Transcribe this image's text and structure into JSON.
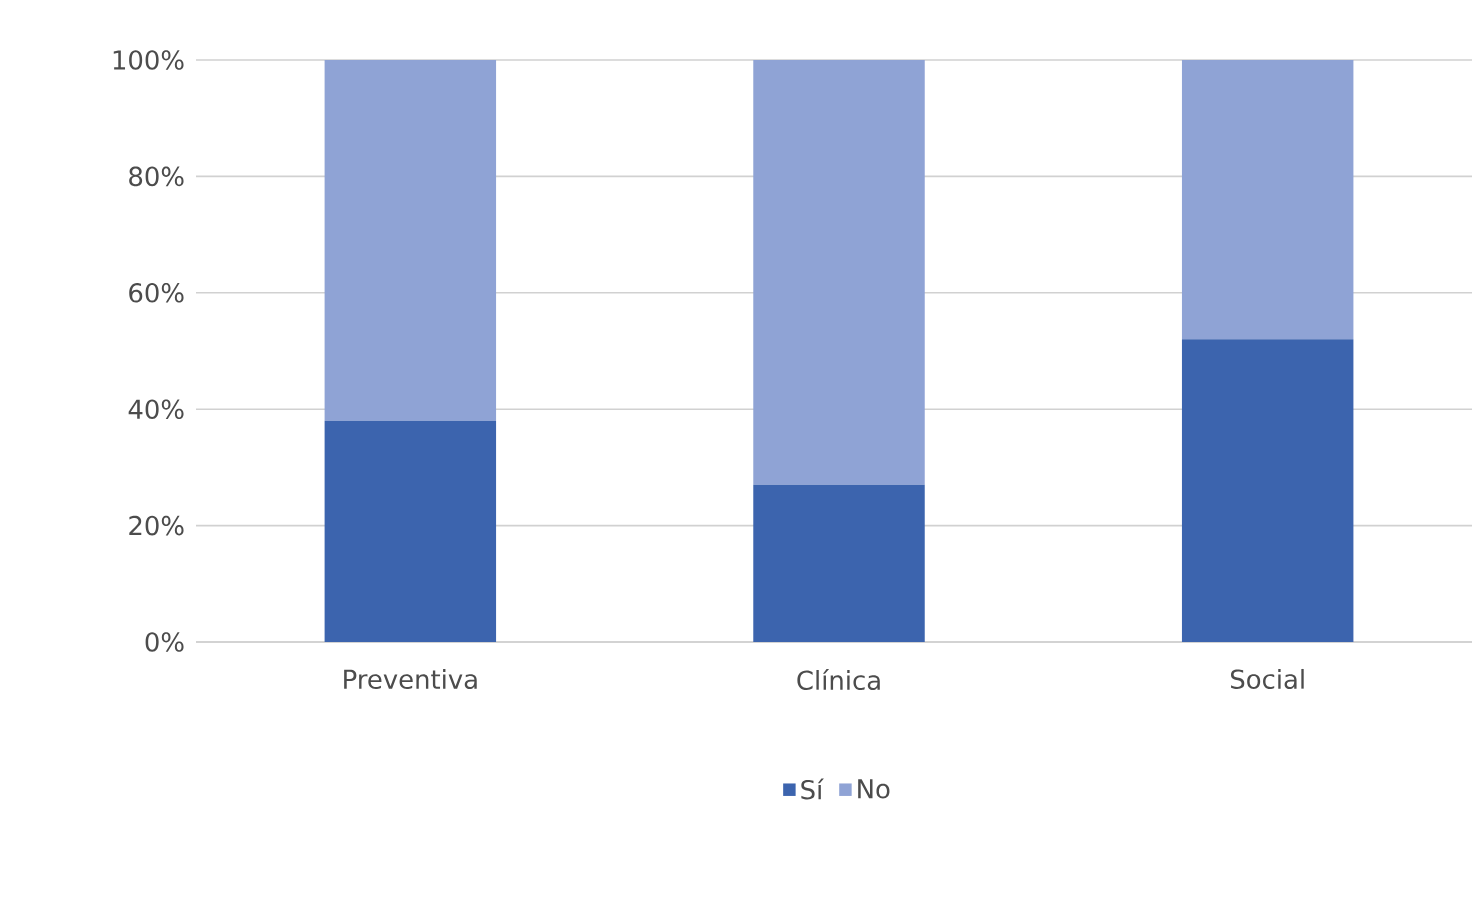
{
  "chart_data": {
    "type": "bar",
    "stacked": true,
    "categories": [
      "Preventiva",
      "Clínica",
      "Social"
    ],
    "series": [
      {
        "name": "Sí",
        "color": "#3c64ae",
        "values": [
          38,
          27,
          52
        ]
      },
      {
        "name": "No",
        "color": "#8fa3d5",
        "values": [
          62,
          73,
          48
        ]
      }
    ],
    "ylim": [
      0,
      100
    ],
    "yticks": [
      {
        "value": 0,
        "label": "0%"
      },
      {
        "value": 20,
        "label": "20%"
      },
      {
        "value": 40,
        "label": "40%"
      },
      {
        "value": 60,
        "label": "60%"
      },
      {
        "value": 80,
        "label": "80%"
      },
      {
        "value": 100,
        "label": "100%"
      }
    ],
    "grid": "y",
    "legend": "bottom"
  }
}
